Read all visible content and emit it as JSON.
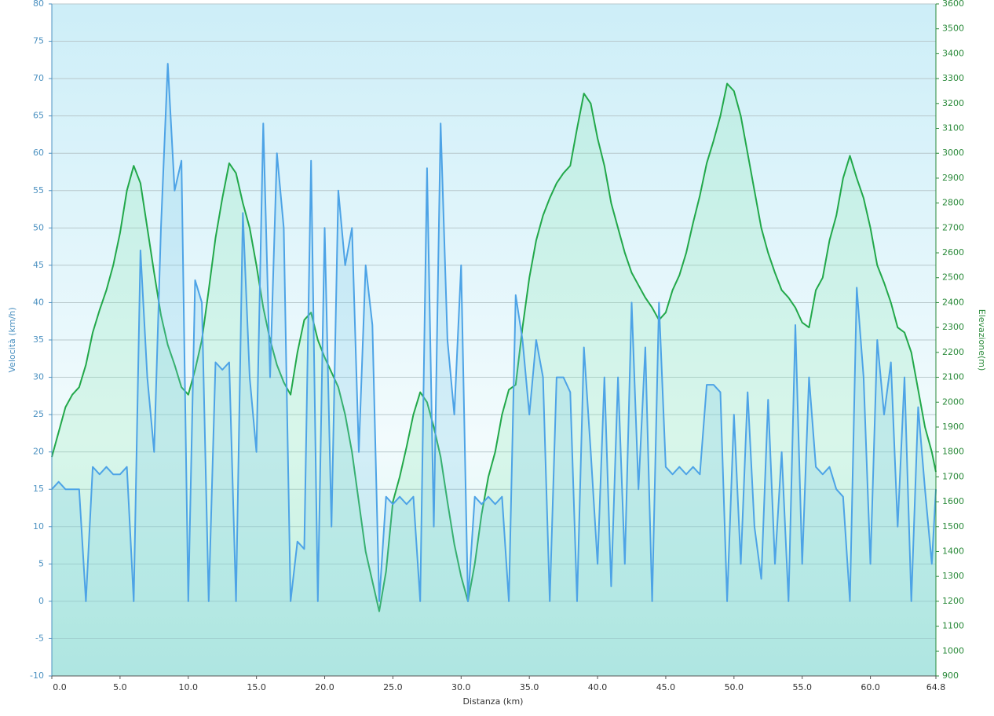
{
  "chart_data": {
    "type": "line",
    "x_label": "Distanza  (km)",
    "y_label": "Velocità (km/h)",
    "y2_label": "Elevazione(m)",
    "x": [
      0,
      0.5,
      1,
      1.5,
      2,
      2.5,
      3,
      3.5,
      4,
      4.5,
      5,
      5.5,
      6,
      6.5,
      7,
      7.5,
      8,
      8.5,
      9,
      9.5,
      10,
      10.5,
      11,
      11.5,
      12,
      12.5,
      13,
      13.5,
      14,
      14.5,
      15,
      15.5,
      16,
      16.5,
      17,
      17.5,
      18,
      18.5,
      19,
      19.5,
      20,
      20.5,
      21,
      21.5,
      22,
      22.5,
      23,
      23.5,
      24,
      24.5,
      25,
      25.5,
      26,
      26.5,
      27,
      27.5,
      28,
      28.5,
      29,
      29.5,
      30,
      30.5,
      31,
      31.5,
      32,
      32.5,
      33,
      33.5,
      34,
      34.5,
      35,
      35.5,
      36,
      36.5,
      37,
      37.5,
      38,
      38.5,
      39,
      39.5,
      40,
      40.5,
      41,
      41.5,
      42,
      42.5,
      43,
      43.5,
      44,
      44.5,
      45,
      45.5,
      46,
      46.5,
      47,
      47.5,
      48,
      48.5,
      49,
      49.5,
      50,
      50.5,
      51,
      51.5,
      52,
      52.5,
      53,
      53.5,
      54,
      54.5,
      55,
      55.5,
      56,
      56.5,
      57,
      57.5,
      58,
      58.5,
      59,
      59.5,
      60,
      60.5,
      61,
      61.5,
      62,
      62.5,
      63,
      63.5,
      64,
      64.5,
      64.8
    ],
    "series": [
      {
        "name": "Velocità",
        "color": "#4da3e6",
        "values": [
          15,
          16,
          15,
          15,
          15,
          0,
          18,
          17,
          18,
          17,
          17,
          18,
          0,
          47,
          30,
          20,
          50,
          72,
          55,
          59,
          0,
          43,
          40,
          0,
          32,
          31,
          32,
          0,
          52,
          30,
          20,
          64,
          30,
          60,
          50,
          0,
          8,
          7,
          59,
          0,
          50,
          10,
          55,
          45,
          50,
          20,
          45,
          37,
          0,
          14,
          13,
          14,
          13,
          14,
          0,
          58,
          10,
          64,
          35,
          25,
          45,
          0,
          14,
          13,
          14,
          13,
          14,
          0,
          41,
          35,
          25,
          35,
          30,
          0,
          30,
          30,
          28,
          0,
          34,
          20,
          5,
          30,
          2,
          30,
          5,
          40,
          15,
          34,
          0,
          40,
          18,
          17,
          18,
          17,
          18,
          17,
          29,
          29,
          28,
          0,
          25,
          5,
          28,
          10,
          3,
          27,
          5,
          20,
          0,
          37,
          5,
          30,
          18,
          17,
          18,
          15,
          14,
          0,
          42,
          30,
          5,
          35,
          25,
          32,
          10,
          30,
          0,
          26,
          15,
          5,
          15
        ]
      },
      {
        "name": "Elevazione",
        "color": "#22a84a",
        "axis": "y2",
        "values": [
          1780,
          1880,
          1980,
          2030,
          2060,
          2150,
          2280,
          2370,
          2450,
          2550,
          2680,
          2850,
          2950,
          2880,
          2700,
          2520,
          2350,
          2230,
          2150,
          2060,
          2030,
          2130,
          2250,
          2450,
          2660,
          2820,
          2960,
          2920,
          2800,
          2700,
          2550,
          2380,
          2250,
          2150,
          2080,
          2030,
          2200,
          2330,
          2360,
          2250,
          2180,
          2120,
          2060,
          1950,
          1800,
          1600,
          1400,
          1280,
          1160,
          1320,
          1600,
          1700,
          1820,
          1950,
          2040,
          2000,
          1900,
          1780,
          1600,
          1430,
          1300,
          1200,
          1350,
          1550,
          1700,
          1800,
          1950,
          2050,
          2070,
          2300,
          2500,
          2650,
          2750,
          2820,
          2880,
          2920,
          2950,
          3100,
          3240,
          3200,
          3060,
          2950,
          2800,
          2700,
          2600,
          2520,
          2470,
          2420,
          2380,
          2330,
          2360,
          2450,
          2510,
          2600,
          2720,
          2830,
          2960,
          3050,
          3150,
          3280,
          3250,
          3150,
          3000,
          2850,
          2700,
          2600,
          2520,
          2450,
          2420,
          2380,
          2320,
          2300,
          2450,
          2500,
          2650,
          2750,
          2900,
          2990,
          2900,
          2820,
          2700,
          2550,
          2480,
          2400,
          2300,
          2280,
          2200,
          2050,
          1900,
          1800,
          1720
        ]
      }
    ],
    "xlim": [
      0,
      64.8
    ],
    "xticks": [
      {
        "value": 0,
        "label": "0.0"
      },
      {
        "value": 5,
        "label": "5.0"
      },
      {
        "value": 10,
        "label": "10.0"
      },
      {
        "value": 15,
        "label": "15.0"
      },
      {
        "value": 20,
        "label": "20.0"
      },
      {
        "value": 25,
        "label": "25.0"
      },
      {
        "value": 30,
        "label": "30.0"
      },
      {
        "value": 35,
        "label": "35.0"
      },
      {
        "value": 40,
        "label": "40.0"
      },
      {
        "value": 45,
        "label": "45.0"
      },
      {
        "value": 50,
        "label": "50.0"
      },
      {
        "value": 55,
        "label": "55.0"
      },
      {
        "value": 60,
        "label": "60.0"
      },
      64.8
    ],
    "ylim": [
      -10,
      80
    ],
    "yticks": [
      -10,
      -5,
      0,
      5,
      10,
      15,
      20,
      25,
      30,
      35,
      40,
      45,
      50,
      55,
      60,
      65,
      70,
      75,
      80
    ],
    "y2lim": [
      900,
      3600
    ],
    "y2ticks": [
      900,
      1000,
      1100,
      1200,
      1300,
      1400,
      1500,
      1600,
      1700,
      1800,
      1900,
      2000,
      2100,
      2200,
      2300,
      2400,
      2500,
      2600,
      2700,
      2800,
      2900,
      3000,
      3100,
      3200,
      3300,
      3400,
      3500,
      3600
    ],
    "grid": true
  }
}
